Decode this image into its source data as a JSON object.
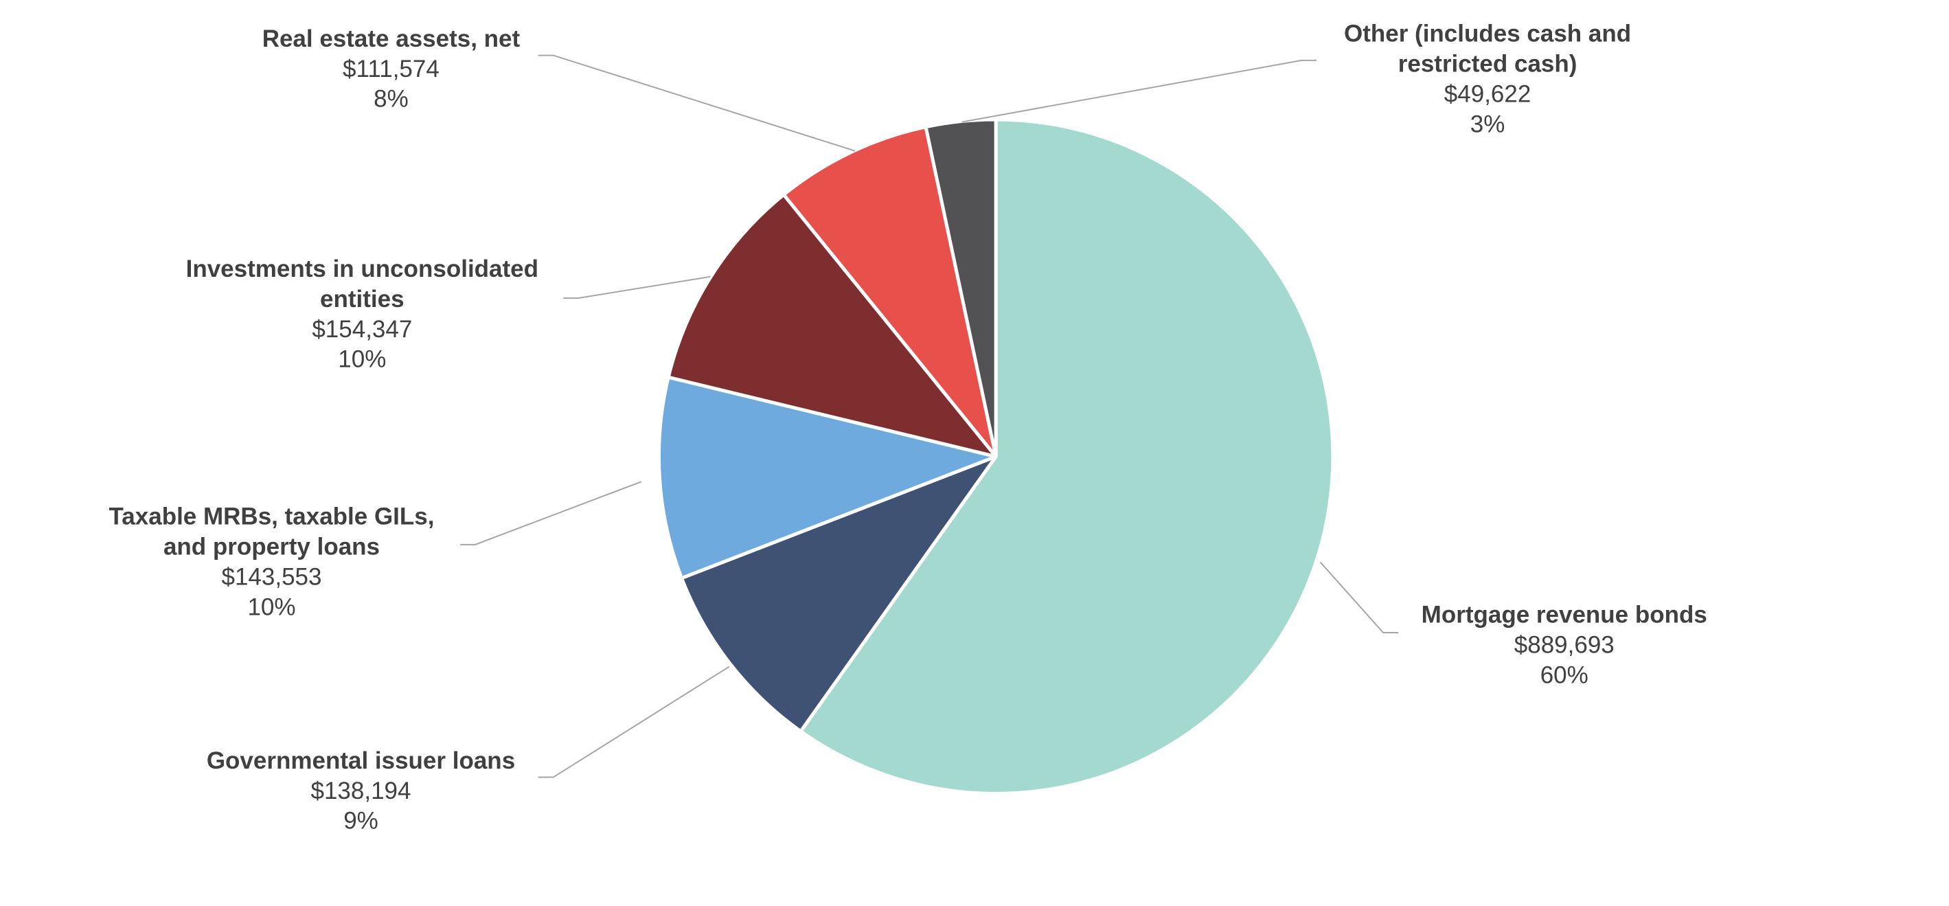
{
  "chart_data": {
    "type": "pie",
    "categories": [
      [
        "Mortgage revenue bonds"
      ],
      [
        "Governmental issuer loans"
      ],
      [
        "Taxable MRBs, taxable GILs,",
        "and property loans"
      ],
      [
        "Investments in unconsolidated",
        "entities"
      ],
      [
        "Real estate assets, net"
      ],
      [
        "Other (includes cash and",
        "restricted cash)"
      ]
    ],
    "values": [
      889693,
      138194,
      143553,
      154347,
      111574,
      49622
    ],
    "value_labels": [
      "$889,693",
      "$138,194",
      "$143,553",
      "$154,347",
      "$111,574",
      "$49,622"
    ],
    "percent_labels": [
      "60%",
      "9%",
      "10%",
      "10%",
      "8%",
      "3%"
    ],
    "colors": [
      "#a3d9cf",
      "#3f5273",
      "#6eaadd",
      "#7f2e2f",
      "#e8504c",
      "#525254"
    ]
  }
}
